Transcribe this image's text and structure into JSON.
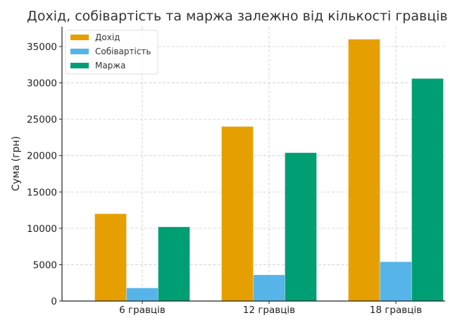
{
  "chart_data": {
    "type": "bar",
    "title": "Дохід, собівартість та маржа залежно від кількості гравців",
    "xlabel": "",
    "ylabel": "Сума (грн)",
    "categories": [
      "6 гравців",
      "12 гравців",
      "18 гравців"
    ],
    "series": [
      {
        "name": "Дохід",
        "color": "#E69F00",
        "values": [
          12000,
          24000,
          36000
        ]
      },
      {
        "name": "Собівартість",
        "color": "#56B4E9",
        "values": [
          1800,
          3600,
          5400
        ]
      },
      {
        "name": "Маржа",
        "color": "#009E73",
        "values": [
          10200,
          20400,
          30600
        ]
      }
    ],
    "ylim": [
      0,
      37800
    ],
    "yticks": [
      0,
      5000,
      10000,
      15000,
      20000,
      25000,
      30000,
      35000
    ],
    "grid": true,
    "legend_position": "upper left"
  }
}
